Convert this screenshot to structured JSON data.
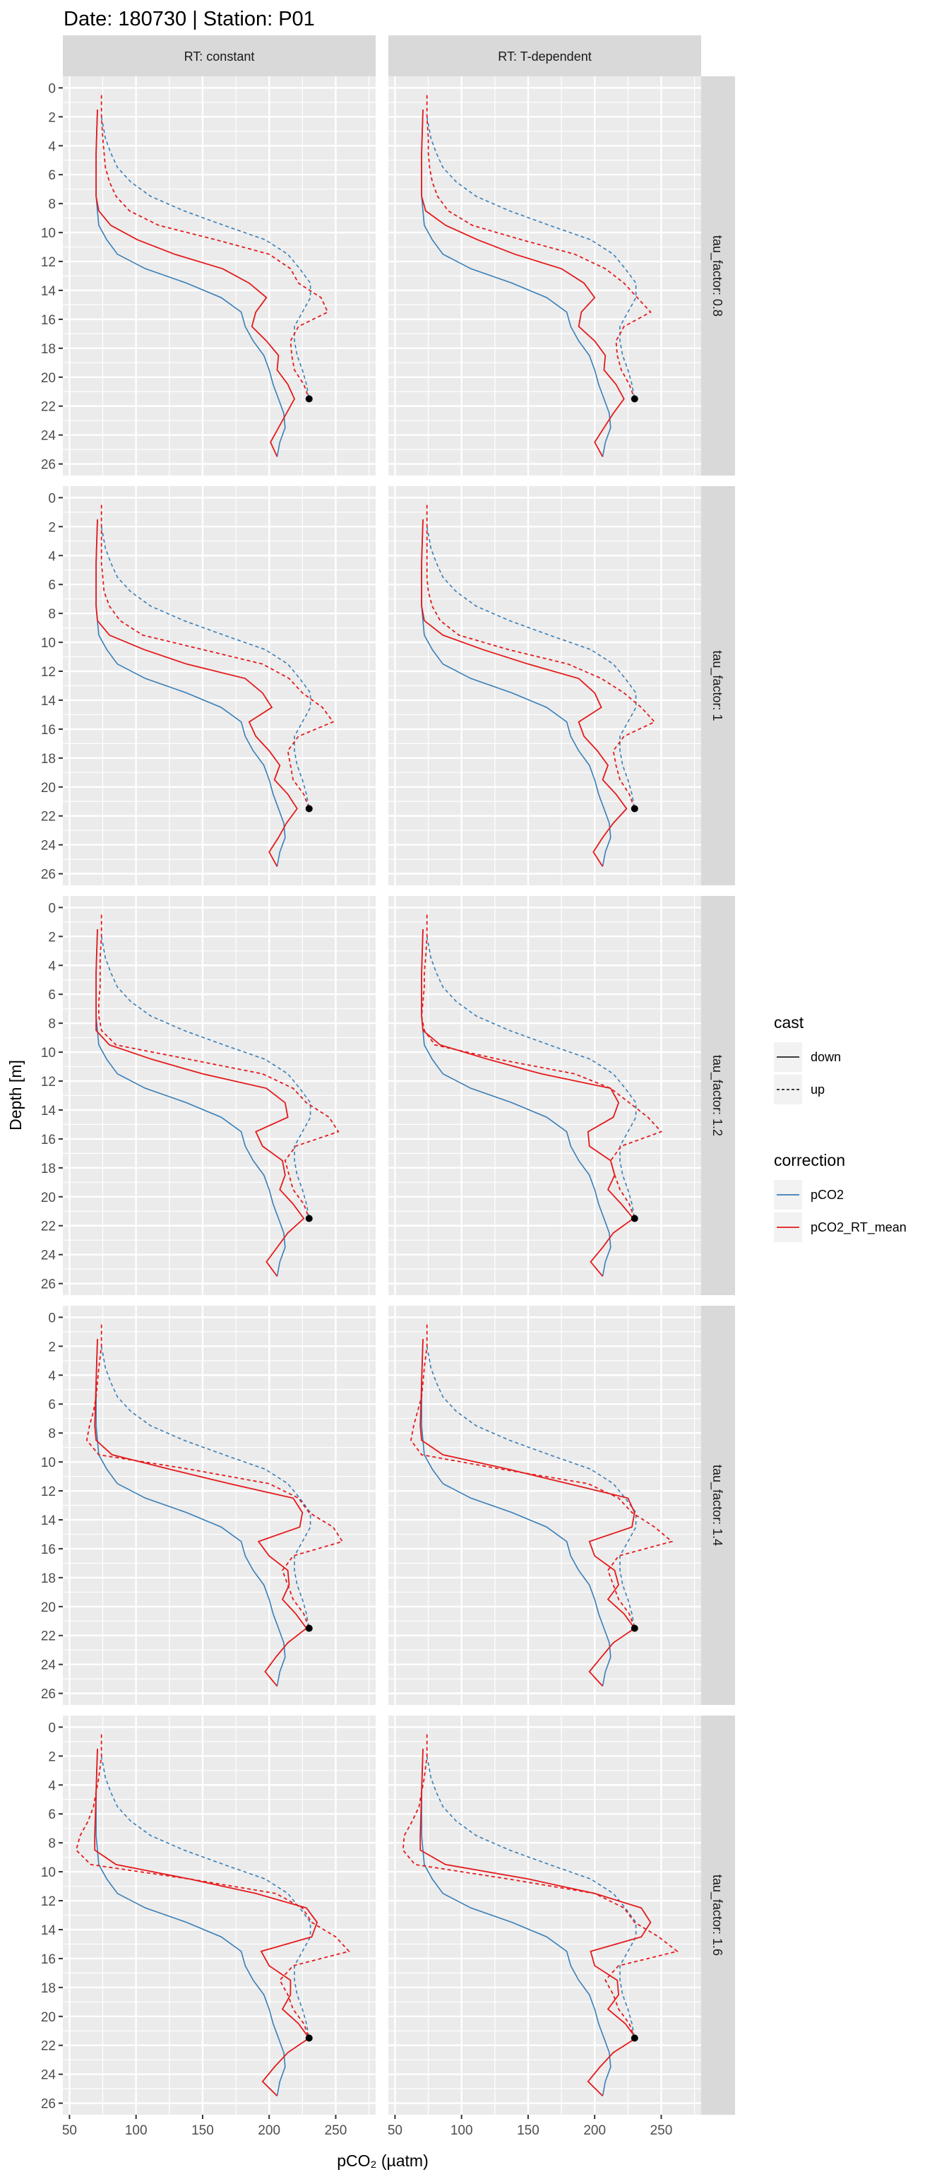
{
  "chart_data": {
    "type": "line",
    "title": "Date: 180730 | Station: P01",
    "xlabel": "pCO₂ (µatm)",
    "ylabel": "Depth [m]",
    "xlim": [
      45,
      280
    ],
    "ylim": [
      26.8,
      -0.8
    ],
    "y_reversed": true,
    "grid": true,
    "xticks": [
      50,
      100,
      150,
      200,
      250
    ],
    "yticks": [
      0,
      2,
      4,
      6,
      8,
      10,
      12,
      14,
      16,
      18,
      20,
      22,
      24,
      26
    ],
    "column_facets": [
      "RT: constant",
      "RT: T-dependent"
    ],
    "row_facets": [
      "tau_factor: 0.8",
      "tau_factor: 1",
      "tau_factor: 1.2",
      "tau_factor: 1.4",
      "tau_factor: 1.6"
    ],
    "legend": {
      "placement": "right",
      "cast": {
        "title": "cast",
        "entries": [
          {
            "label": "down",
            "linetype": "solid"
          },
          {
            "label": "up",
            "linetype": "dashed"
          }
        ]
      },
      "correction": {
        "title": "correction",
        "entries": [
          {
            "label": "pCO2",
            "color": "#377EB8"
          },
          {
            "label": "pCO2_RT_mean",
            "color": "#E41A1C"
          }
        ]
      }
    },
    "depth_down": [
      1.5,
      4.5,
      7.5,
      8.5,
      9.5,
      10.5,
      11.5,
      12.5,
      13.5,
      14.5,
      15.5,
      16.5,
      17.5,
      18.5,
      19.5,
      20.5,
      21.5,
      22.5,
      23.5,
      24.5,
      25.5
    ],
    "depth_up": [
      0.5,
      2,
      3.5,
      4.5,
      5.5,
      6.5,
      7.5,
      8.5,
      9.5,
      10.5,
      11.5,
      12.5,
      13.5,
      14.5,
      15.5,
      16.5,
      17.5,
      18.5,
      19.5,
      20.5,
      21.5
    ],
    "pCO2_down": [
      71,
      70,
      70,
      71,
      72,
      78,
      86,
      107,
      138,
      164,
      179,
      182,
      188,
      196,
      200,
      203,
      207,
      211,
      212,
      208,
      206
    ],
    "pCO2_up": [
      null,
      74,
      77,
      81,
      86,
      96,
      111,
      136,
      166,
      197,
      214,
      223,
      231,
      231,
      225,
      219,
      219,
      221,
      225,
      228,
      230
    ],
    "point": {
      "pCO2": 230,
      "depth": 21.5
    },
    "panels": [
      {
        "rt": "RT: constant",
        "tau": "tau_factor: 0.8",
        "RT_mean_down": [
          71,
          70,
          70,
          72,
          81,
          101,
          129,
          165,
          185,
          198,
          190,
          187,
          198,
          207,
          206,
          214,
          219,
          213,
          207,
          201,
          206
        ],
        "RT_mean_up": [
          74,
          74,
          75,
          76,
          77,
          80,
          85,
          95,
          117,
          160,
          200,
          216,
          222,
          239,
          244,
          222,
          216,
          217,
          219,
          226,
          230
        ]
      },
      {
        "rt": "RT: T-dependent",
        "tau": "tau_factor: 0.8",
        "RT_mean_down": [
          71,
          70,
          70,
          73,
          88,
          112,
          140,
          175,
          192,
          200,
          190,
          188,
          200,
          208,
          207,
          216,
          222,
          214,
          207,
          200,
          206
        ],
        "RT_mean_up": [
          74,
          74,
          75,
          75,
          76,
          78,
          82,
          90,
          108,
          145,
          185,
          208,
          222,
          232,
          242,
          222,
          216,
          217,
          220,
          226,
          230
        ]
      },
      {
        "rt": "RT: constant",
        "tau": "tau_factor: 1",
        "RT_mean_down": [
          71,
          70,
          70,
          71,
          80,
          106,
          138,
          182,
          195,
          202,
          185,
          190,
          200,
          208,
          204,
          214,
          221,
          213,
          207,
          200,
          206
        ],
        "RT_mean_up": [
          74,
          74,
          74,
          74,
          75,
          76,
          80,
          88,
          105,
          150,
          195,
          215,
          225,
          240,
          248,
          222,
          214,
          216,
          218,
          226,
          230
        ]
      },
      {
        "rt": "RT: T-dependent",
        "tau": "tau_factor: 1",
        "RT_mean_down": [
          71,
          70,
          70,
          72,
          86,
          116,
          150,
          188,
          200,
          205,
          188,
          192,
          202,
          210,
          206,
          216,
          224,
          214,
          206,
          199,
          206
        ],
        "RT_mean_up": [
          74,
          74,
          74,
          74,
          74,
          75,
          78,
          84,
          98,
          135,
          180,
          205,
          222,
          235,
          245,
          222,
          214,
          216,
          219,
          226,
          230
        ]
      },
      {
        "rt": "RT: constant",
        "tau": "tau_factor: 1.2",
        "RT_mean_down": [
          71,
          70,
          70,
          70,
          80,
          112,
          150,
          198,
          212,
          214,
          190,
          195,
          210,
          212,
          208,
          218,
          226,
          214,
          206,
          198,
          206
        ],
        "RT_mean_up": [
          74,
          74,
          73,
          73,
          73,
          72,
          72,
          74,
          85,
          140,
          195,
          218,
          228,
          245,
          252,
          220,
          212,
          215,
          218,
          226,
          230
        ]
      },
      {
        "rt": "RT: T-dependent",
        "tau": "tau_factor: 1.2",
        "RT_mean_down": [
          71,
          70,
          70,
          71,
          84,
          120,
          160,
          212,
          218,
          214,
          195,
          196,
          212,
          215,
          210,
          220,
          229,
          214,
          206,
          197,
          206
        ],
        "RT_mean_up": [
          74,
          74,
          73,
          72,
          72,
          71,
          70,
          72,
          80,
          128,
          185,
          212,
          226,
          240,
          250,
          220,
          212,
          215,
          219,
          226,
          230
        ]
      },
      {
        "rt": "RT: constant",
        "tau": "tau_factor: 1.4",
        "RT_mean_down": [
          71,
          70,
          69,
          70,
          82,
          125,
          170,
          218,
          225,
          223,
          192,
          200,
          214,
          215,
          210,
          220,
          228,
          214,
          205,
          197,
          206
        ],
        "RT_mean_up": [
          74,
          74,
          72,
          71,
          70,
          68,
          65,
          63,
          72,
          140,
          200,
          222,
          230,
          248,
          255,
          218,
          210,
          214,
          218,
          226,
          230
        ]
      },
      {
        "rt": "RT: T-dependent",
        "tau": "tau_factor: 1.4",
        "RT_mean_down": [
          71,
          70,
          69,
          70,
          86,
          135,
          180,
          225,
          230,
          228,
          196,
          200,
          215,
          218,
          210,
          222,
          230,
          214,
          205,
          196,
          206
        ],
        "RT_mean_up": [
          74,
          74,
          72,
          71,
          70,
          67,
          64,
          62,
          70,
          130,
          195,
          218,
          228,
          245,
          258,
          218,
          210,
          214,
          218,
          226,
          230
        ]
      },
      {
        "rt": "RT: constant",
        "tau": "tau_factor: 1.6",
        "RT_mean_down": [
          71,
          70,
          69,
          69,
          85,
          140,
          190,
          228,
          236,
          232,
          194,
          200,
          216,
          216,
          210,
          222,
          230,
          214,
          204,
          195,
          206
        ],
        "RT_mean_up": [
          74,
          74,
          72,
          70,
          68,
          64,
          58,
          55,
          66,
          140,
          205,
          225,
          232,
          250,
          260,
          218,
          208,
          214,
          218,
          226,
          230
        ]
      },
      {
        "rt": "RT: T-dependent",
        "tau": "tau_factor: 1.6",
        "RT_mean_down": [
          71,
          70,
          69,
          69,
          88,
          150,
          200,
          235,
          242,
          235,
          197,
          200,
          217,
          218,
          210,
          223,
          231,
          214,
          204,
          195,
          206
        ],
        "RT_mean_up": [
          74,
          74,
          72,
          70,
          68,
          63,
          57,
          56,
          65,
          135,
          200,
          222,
          230,
          248,
          262,
          218,
          208,
          214,
          218,
          226,
          230
        ]
      }
    ]
  }
}
